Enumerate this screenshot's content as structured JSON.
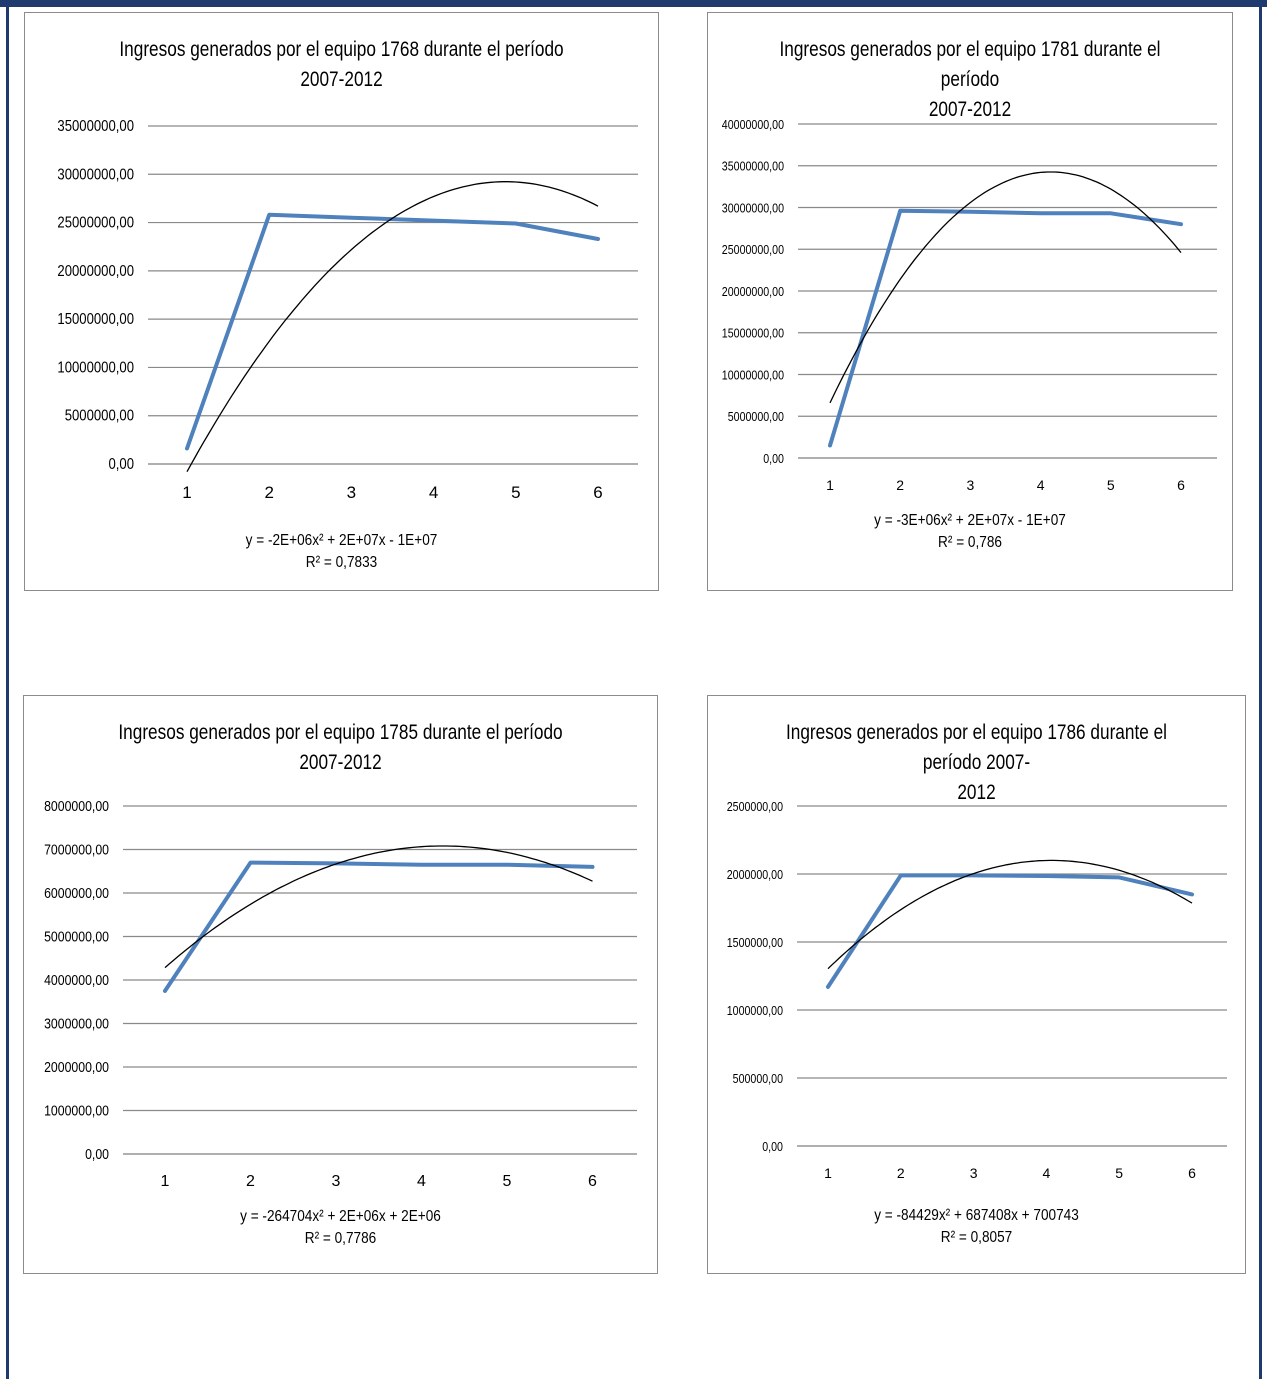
{
  "chart_data": [
    {
      "type": "line",
      "title": "Ingresos  generados por el equipo 1768 durante el período\n2007-2012",
      "x": [
        "1",
        "2",
        "3",
        "4",
        "5",
        "6"
      ],
      "yticks": [
        "0,00",
        "5000000,00",
        "10000000,00",
        "15000000,00",
        "20000000,00",
        "25000000,00",
        "30000000,00",
        "35000000,00"
      ],
      "ylim": [
        0,
        35000000
      ],
      "series": [
        {
          "values": [
            1600000,
            25800000,
            25500000,
            25200000,
            24900000,
            23300000
          ],
          "color": "#4f81bd"
        }
      ],
      "trendline": {
        "type": "polynomial",
        "coefficients": [
          -2000000,
          19500000,
          -18300000
        ],
        "color": "#000000"
      },
      "equation": "y = -2E+06x² + 2E+07x - 1E+07",
      "r2": "R² = 0,7833",
      "grid": true
    },
    {
      "type": "line",
      "title": "Ingresos generados por el equipo 1781 durante el período\n2007-2012",
      "x": [
        "1",
        "2",
        "3",
        "4",
        "5",
        "6"
      ],
      "yticks": [
        "0,00",
        "5000000,00",
        "10000000,00",
        "15000000,00",
        "20000000,00",
        "25000000,00",
        "30000000,00",
        "35000000,00",
        "40000000,00"
      ],
      "ylim": [
        0,
        40000000
      ],
      "series": [
        {
          "values": [
            1500000,
            29600000,
            29500000,
            29300000,
            29300000,
            28000000
          ],
          "color": "#4f81bd"
        }
      ],
      "trendline": {
        "type": "polynomial",
        "coefficients": [
          -2800000,
          23200000,
          -13800000
        ],
        "color": "#000000"
      },
      "equation": "y = -3E+06x² + 2E+07x - 1E+07",
      "r2": "R² = 0,786",
      "grid": true
    },
    {
      "type": "line",
      "title": "Ingresos  generados por el equipo 1785 durante el período\n2007-2012",
      "x": [
        "1",
        "2",
        "3",
        "4",
        "5",
        "6"
      ],
      "yticks": [
        "0,00",
        "1000000,00",
        "2000000,00",
        "3000000,00",
        "4000000,00",
        "5000000,00",
        "6000000,00",
        "7000000,00",
        "8000000,00"
      ],
      "ylim": [
        0,
        8000000
      ],
      "series": [
        {
          "values": [
            3750000,
            6700000,
            6680000,
            6650000,
            6650000,
            6600000
          ],
          "color": "#4f81bd"
        }
      ],
      "trendline": {
        "type": "polynomial",
        "coefficients": [
          -264704,
          2250000,
          2300000
        ],
        "color": "#000000"
      },
      "equation": "y = -264704x² + 2E+06x  + 2E+06",
      "r2": "R² = 0,7786",
      "grid": true
    },
    {
      "type": "line",
      "title": "Ingresos generados por el equipo 1786 durante el período 2007-\n2012",
      "x": [
        "1",
        "2",
        "3",
        "4",
        "5",
        "6"
      ],
      "yticks": [
        "0,00",
        "500000,00",
        "1000000,00",
        "1500000,00",
        "2000000,00",
        "2500000,00"
      ],
      "ylim": [
        0,
        2500000
      ],
      "series": [
        {
          "values": [
            1170000,
            1990000,
            1990000,
            1985000,
            1975000,
            1850000
          ],
          "color": "#4f81bd"
        }
      ],
      "trendline": {
        "type": "polynomial",
        "coefficients": [
          -84429,
          687408,
          700743
        ],
        "color": "#000000"
      },
      "equation": "y = -84429x² + 687408x + 700743",
      "r2": "R² = 0,8057",
      "grid": true
    }
  ]
}
